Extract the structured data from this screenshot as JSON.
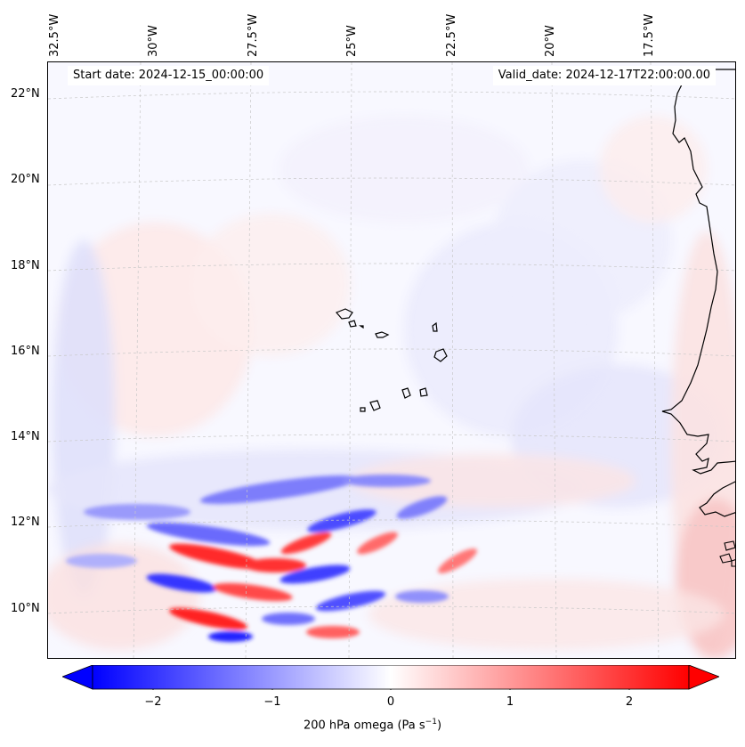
{
  "map": {
    "start_date": "Start date: 2024-12-15_00:00:00",
    "valid_date": "Valid_date: 2024-12-17T22:00:00.00",
    "longitude_labels": [
      "32.5°W",
      "30°W",
      "27.5°W",
      "25°W",
      "22.5°W",
      "20°W",
      "17.5°W"
    ],
    "latitude_labels": [
      "22°N",
      "20°N",
      "18°N",
      "16°N",
      "14°N",
      "12°N",
      "10°N"
    ],
    "field": "200 hPa omega",
    "colors": {
      "negative": "#0000ff",
      "zero": "#ffffff",
      "positive": "#ff0000",
      "coast": "#000000"
    }
  },
  "colorbar": {
    "ticks": [
      "−2",
      "−1",
      "0",
      "1",
      "2"
    ],
    "label_main": "200 hPa omega (Pa s",
    "label_exp": "−1",
    "label_end": ")",
    "range": [
      -2.6,
      2.6
    ]
  }
}
